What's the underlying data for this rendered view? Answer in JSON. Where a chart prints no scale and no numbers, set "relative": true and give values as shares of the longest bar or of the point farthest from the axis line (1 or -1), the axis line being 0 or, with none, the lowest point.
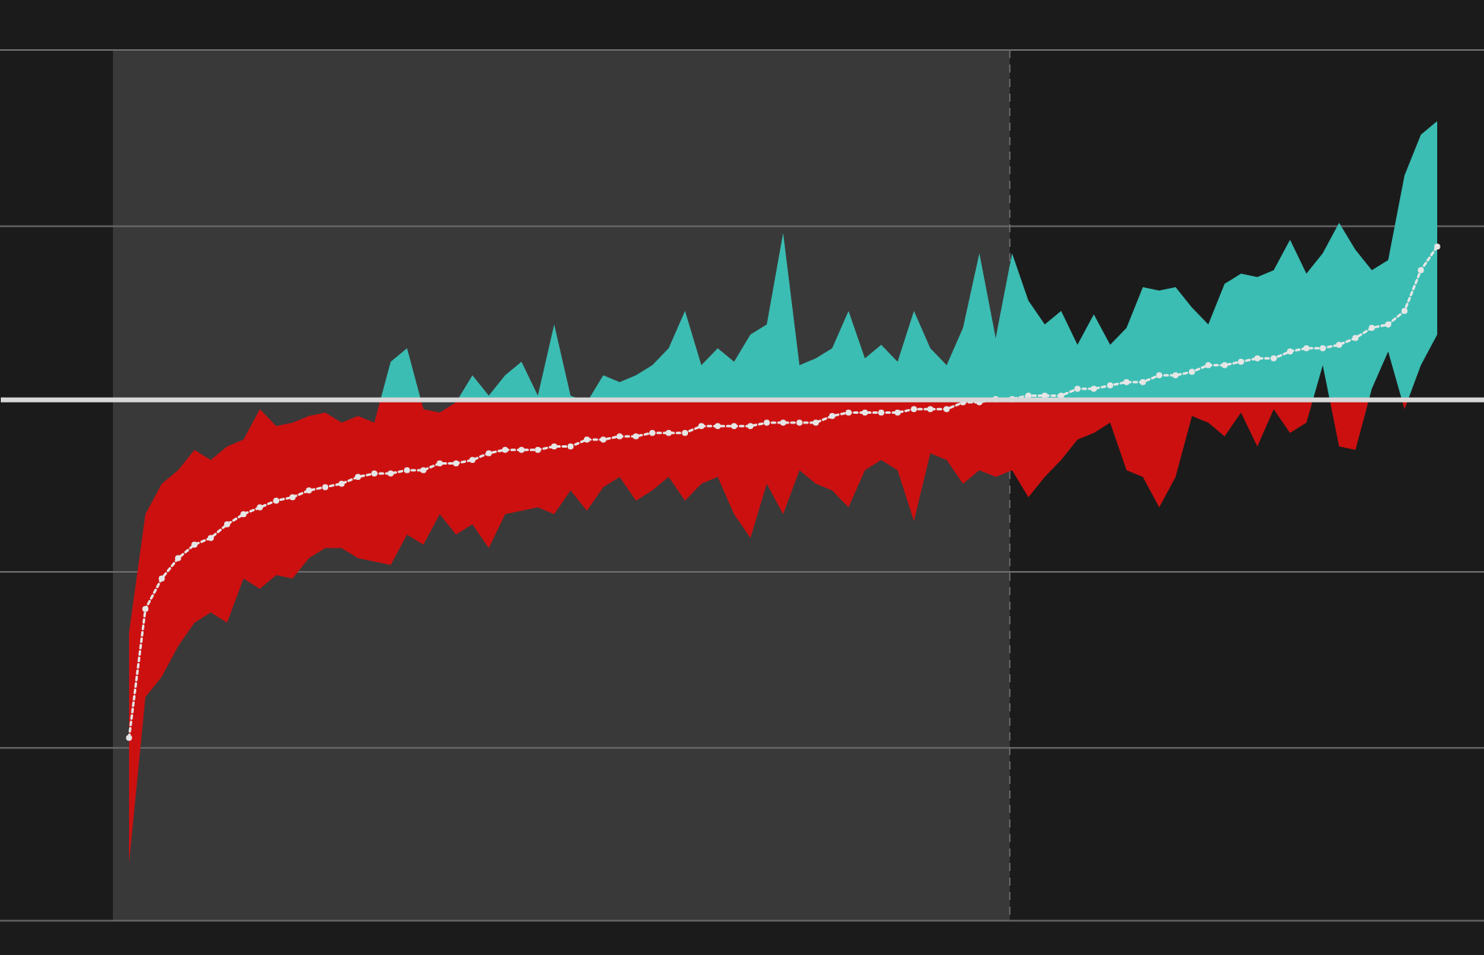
{
  "chart_data": {
    "type": "line",
    "relative": true,
    "tick_labels": false,
    "categories": [
      null,
      null,
      null,
      null,
      null,
      null,
      null,
      null,
      null,
      null,
      null,
      null,
      null,
      null,
      null,
      null,
      null,
      null,
      null,
      null,
      null,
      null,
      null,
      null,
      null,
      null,
      null,
      null,
      null,
      null,
      null,
      null,
      null,
      null,
      null,
      null,
      null,
      null,
      null,
      null,
      null,
      null,
      null,
      null,
      null,
      null,
      null,
      null,
      null,
      null,
      null,
      null,
      null,
      null,
      null,
      null,
      null,
      null,
      null,
      null,
      null,
      null,
      null,
      null,
      null,
      null,
      null,
      null,
      null,
      null,
      null,
      null,
      null,
      null,
      null,
      null,
      null,
      null,
      null,
      null,
      null
    ],
    "series": [
      {
        "color": "#e6e6e6",
        "line_style": "dotted",
        "marker": "circle",
        "values": [
          -1.0,
          -0.62,
          -0.53,
          -0.47,
          -0.43,
          -0.41,
          -0.37,
          -0.34,
          -0.32,
          -0.3,
          -0.29,
          -0.27,
          -0.26,
          -0.25,
          -0.23,
          -0.22,
          -0.22,
          -0.21,
          -0.21,
          -0.19,
          -0.19,
          -0.18,
          -0.16,
          -0.15,
          -0.15,
          -0.15,
          -0.14,
          -0.14,
          -0.12,
          -0.12,
          -0.11,
          -0.11,
          -0.1,
          -0.1,
          -0.1,
          -0.08,
          -0.08,
          -0.08,
          -0.08,
          -0.07,
          -0.07,
          -0.07,
          -0.07,
          -0.05,
          -0.04,
          -0.04,
          -0.04,
          -0.04,
          -0.03,
          -0.03,
          -0.03,
          -0.01,
          -0.01,
          0.0,
          0.0,
          0.01,
          0.01,
          0.01,
          0.03,
          0.03,
          0.04,
          0.05,
          0.05,
          0.07,
          0.07,
          0.08,
          0.1,
          0.1,
          0.11,
          0.12,
          0.12,
          0.14,
          0.15,
          0.15,
          0.16,
          0.18,
          0.21,
          0.22,
          0.26,
          0.38,
          0.45
        ],
        "lower": [
          -1.37,
          -0.88,
          -0.82,
          -0.73,
          -0.66,
          -0.63,
          -0.66,
          -0.53,
          -0.56,
          -0.52,
          -0.53,
          -0.47,
          -0.44,
          -0.44,
          -0.47,
          -0.48,
          -0.49,
          -0.4,
          -0.43,
          -0.34,
          -0.4,
          -0.37,
          -0.44,
          -0.34,
          -0.33,
          -0.32,
          -0.34,
          -0.27,
          -0.33,
          -0.26,
          -0.23,
          -0.3,
          -0.27,
          -0.23,
          -0.3,
          -0.25,
          -0.23,
          -0.34,
          -0.41,
          -0.25,
          -0.34,
          -0.21,
          -0.25,
          -0.27,
          -0.32,
          -0.21,
          -0.18,
          -0.21,
          -0.36,
          -0.16,
          -0.18,
          -0.25,
          -0.21,
          -0.23,
          -0.21,
          -0.29,
          -0.23,
          -0.18,
          -0.12,
          -0.1,
          -0.07,
          -0.21,
          -0.23,
          -0.32,
          -0.23,
          -0.05,
          -0.07,
          -0.11,
          -0.04,
          -0.14,
          -0.03,
          -0.1,
          -0.07,
          0.1,
          -0.14,
          -0.15,
          0.03,
          0.14,
          -0.03,
          0.1,
          0.19
        ],
        "upper": [
          -0.69,
          -0.34,
          -0.25,
          -0.21,
          -0.15,
          -0.18,
          -0.14,
          -0.12,
          -0.03,
          -0.08,
          -0.07,
          -0.05,
          -0.04,
          -0.07,
          -0.05,
          -0.07,
          0.11,
          0.15,
          -0.03,
          -0.04,
          -0.01,
          0.07,
          0.01,
          0.07,
          0.11,
          0.01,
          0.22,
          0.01,
          -0.01,
          0.07,
          0.05,
          0.07,
          0.1,
          0.15,
          0.26,
          0.1,
          0.15,
          0.11,
          0.19,
          0.22,
          0.49,
          0.1,
          0.12,
          0.15,
          0.26,
          0.12,
          0.16,
          0.11,
          0.26,
          0.15,
          0.1,
          0.21,
          0.43,
          0.18,
          0.43,
          0.29,
          0.22,
          0.26,
          0.16,
          0.25,
          0.16,
          0.21,
          0.33,
          0.32,
          0.33,
          0.27,
          0.22,
          0.34,
          0.37,
          0.36,
          0.38,
          0.47,
          0.37,
          0.43,
          0.52,
          0.44,
          0.38,
          0.41,
          0.66,
          0.78,
          0.82
        ]
      }
    ],
    "ref_lines": [
      {
        "axis": "y",
        "value": 1.03,
        "color": "#6a6a6a"
      },
      {
        "axis": "y",
        "value": 0.51,
        "color": "#6a6a6a"
      },
      {
        "axis": "y",
        "value": -0.51,
        "color": "#6a6a6a"
      },
      {
        "axis": "y",
        "value": -1.03,
        "color": "#6a6a6a"
      },
      {
        "axis": "y",
        "value": -1.54,
        "color": "#6a6a6a"
      }
    ]
  }
}
